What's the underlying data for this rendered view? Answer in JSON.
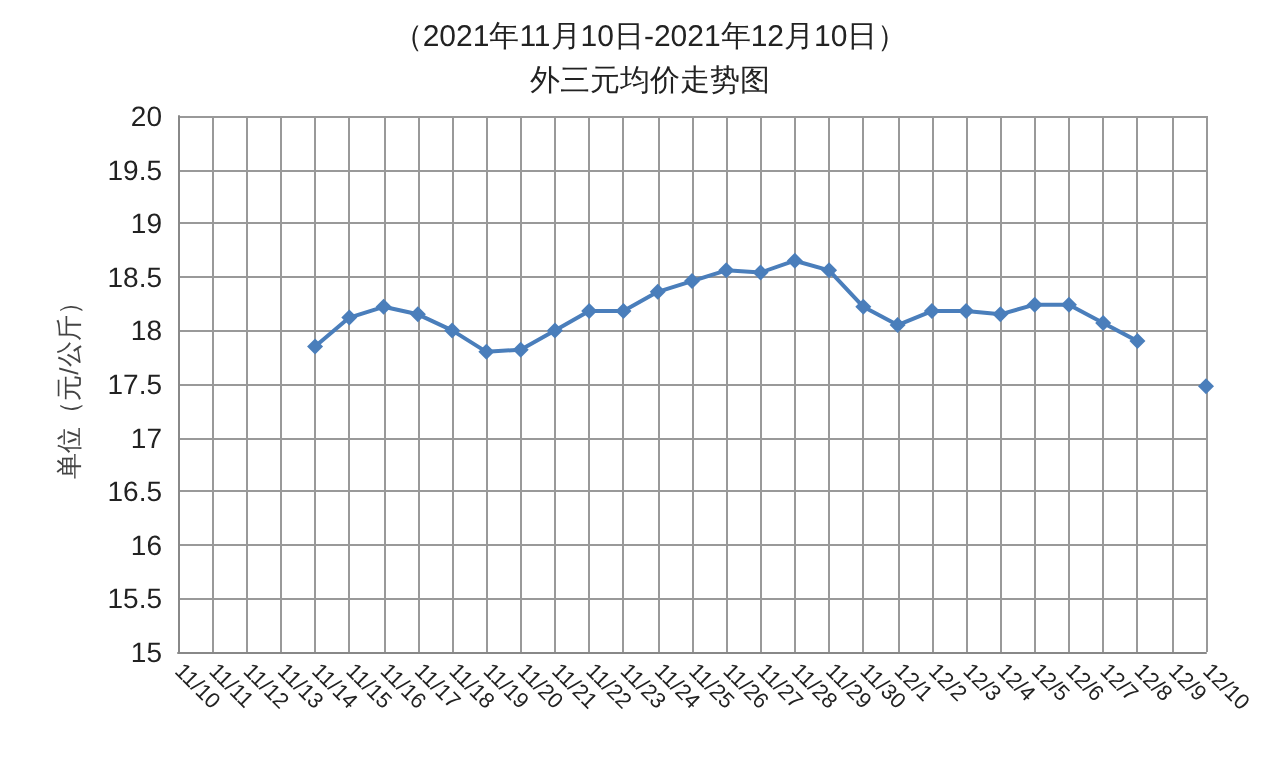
{
  "chart_data": {
    "type": "line",
    "title": "（2021年11月10日-2021年12月10日）",
    "subtitle": "外三元均价走势图",
    "ylabel": "单位（元/公斤）",
    "categories": [
      "11/10",
      "11/11",
      "11/12",
      "11/13",
      "11/14",
      "11/15",
      "11/16",
      "11/17",
      "11/18",
      "11/19",
      "11/20",
      "11/21",
      "11/22",
      "11/23",
      "11/24",
      "11/25",
      "11/26",
      "11/27",
      "11/28",
      "11/29",
      "11/30",
      "12/1",
      "12/2",
      "12/3",
      "12/4",
      "12/5",
      "12/6",
      "12/7",
      "12/8",
      "12/9",
      "12/10"
    ],
    "series": [
      {
        "color": "#4a7ebb",
        "values": [
          null,
          null,
          null,
          null,
          17.85,
          18.12,
          18.22,
          18.15,
          18.0,
          17.8,
          17.82,
          18.0,
          18.18,
          18.18,
          18.36,
          18.46,
          18.56,
          18.54,
          18.65,
          18.56,
          18.22,
          18.05,
          18.18,
          18.18,
          18.15,
          18.24,
          18.24,
          18.07,
          17.9,
          null,
          17.48
        ]
      }
    ],
    "ylim": [
      15,
      20
    ],
    "yticks": [
      15,
      15.5,
      16,
      16.5,
      17,
      17.5,
      18,
      18.5,
      19,
      19.5,
      20
    ],
    "grid": true,
    "marker": "diamond",
    "line_style": "solid"
  }
}
